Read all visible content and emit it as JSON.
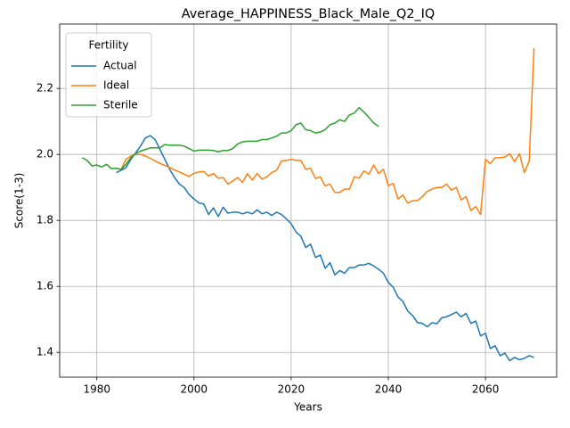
{
  "chart_data": {
    "type": "line",
    "title": "Average_HAPPINESS_Black_Male_Q2_IQ",
    "x_label": "Years",
    "y_label": "Score(1-3)",
    "legend_title": "Fertility",
    "legend_loc": "upper left",
    "grid": true,
    "x": [
      1977,
      1978,
      1979,
      1980,
      1981,
      1982,
      1983,
      1984,
      1985,
      1986,
      1987,
      1988,
      1989,
      1990,
      1991,
      1992,
      1993,
      1994,
      1995,
      1996,
      1997,
      1998,
      1999,
      2000,
      2001,
      2002,
      2003,
      2004,
      2005,
      2006,
      2007,
      2008,
      2009,
      2010,
      2011,
      2012,
      2013,
      2014,
      2015,
      2016,
      2017,
      2018,
      2019,
      2020,
      2021,
      2022,
      2023,
      2024,
      2025,
      2026,
      2027,
      2028,
      2029,
      2030,
      2031,
      2032,
      2033,
      2034,
      2035,
      2036,
      2037,
      2038,
      2039,
      2040,
      2041,
      2042,
      2043,
      2044,
      2045,
      2046,
      2047,
      2048,
      2049,
      2050,
      2051,
      2052,
      2053,
      2054,
      2055,
      2056,
      2057,
      2058,
      2059,
      2060,
      2061,
      2062,
      2063,
      2064,
      2065,
      2066,
      2067,
      2068,
      2069,
      2070
    ],
    "xlim": [
      1972.35,
      2074.65
    ],
    "xticks": [
      1980,
      2000,
      2020,
      2040,
      2060
    ],
    "ylim": [
      1.325,
      2.395
    ],
    "yticks": [
      1.4,
      1.6,
      1.8,
      {
        "value": 2.0,
        "label": "2.0"
      },
      2.2
    ],
    "series": [
      {
        "name": "Actual",
        "color": "#1f77b4",
        "values": [
          null,
          null,
          null,
          null,
          null,
          null,
          null,
          1.945,
          1.952,
          1.96,
          1.985,
          2.005,
          2.025,
          2.05,
          2.057,
          2.045,
          2.015,
          1.985,
          1.955,
          1.93,
          1.91,
          1.9,
          1.878,
          1.865,
          1.853,
          1.85,
          1.818,
          1.838,
          1.812,
          1.84,
          1.822,
          1.825,
          1.825,
          1.82,
          1.825,
          1.82,
          1.832,
          1.82,
          1.825,
          1.815,
          1.825,
          1.818,
          1.805,
          1.79,
          1.765,
          1.752,
          1.718,
          1.728,
          1.688,
          1.695,
          1.655,
          1.672,
          1.635,
          1.648,
          1.64,
          1.657,
          1.657,
          1.665,
          1.665,
          1.67,
          1.662,
          1.652,
          1.64,
          1.612,
          1.598,
          1.568,
          1.555,
          1.525,
          1.512,
          1.49,
          1.488,
          1.478,
          1.49,
          1.487,
          1.505,
          1.508,
          1.515,
          1.522,
          1.508,
          1.518,
          1.488,
          1.495,
          1.45,
          1.458,
          1.412,
          1.42,
          1.39,
          1.398,
          1.375,
          1.385,
          1.378,
          1.382,
          1.39,
          1.385
        ]
      },
      {
        "name": "Ideal",
        "color": "#ff7f0e",
        "values": [
          null,
          null,
          null,
          null,
          null,
          null,
          null,
          null,
          1.955,
          1.985,
          1.995,
          2.0,
          2.0,
          1.995,
          1.988,
          1.98,
          1.973,
          1.967,
          1.96,
          1.953,
          1.947,
          1.94,
          1.933,
          1.943,
          1.947,
          1.948,
          1.935,
          1.942,
          1.928,
          1.93,
          1.91,
          1.92,
          1.93,
          1.915,
          1.942,
          1.922,
          1.942,
          1.925,
          1.932,
          1.945,
          1.952,
          1.98,
          1.982,
          1.985,
          1.982,
          1.982,
          1.955,
          1.958,
          1.927,
          1.932,
          1.905,
          1.91,
          1.885,
          1.885,
          1.895,
          1.895,
          1.932,
          1.928,
          1.95,
          1.94,
          1.968,
          1.942,
          1.955,
          1.905,
          1.912,
          1.865,
          1.877,
          1.852,
          1.86,
          1.86,
          1.872,
          1.888,
          1.895,
          1.9,
          1.9,
          1.91,
          1.892,
          1.9,
          1.862,
          1.872,
          1.83,
          1.842,
          1.818,
          1.985,
          1.972,
          1.99,
          1.99,
          1.992,
          2.002,
          1.978,
          2.002,
          1.945,
          1.98,
          2.322
        ]
      },
      {
        "name": "Sterile",
        "color": "#2ca02c",
        "values": [
          1.99,
          1.982,
          1.965,
          1.968,
          1.962,
          1.97,
          1.957,
          1.958,
          1.955,
          1.97,
          1.99,
          2.003,
          2.01,
          2.015,
          2.02,
          2.02,
          2.02,
          2.03,
          2.028,
          2.028,
          2.028,
          2.025,
          2.018,
          2.01,
          2.013,
          2.013,
          2.013,
          2.012,
          2.008,
          2.012,
          2.012,
          2.018,
          2.032,
          2.038,
          2.04,
          2.04,
          2.04,
          2.045,
          2.045,
          2.05,
          2.055,
          2.065,
          2.065,
          2.072,
          2.09,
          2.095,
          2.075,
          2.072,
          2.065,
          2.068,
          2.075,
          2.09,
          2.095,
          2.105,
          2.1,
          2.12,
          2.125,
          2.142,
          2.128,
          2.112,
          2.095,
          2.085,
          null,
          null,
          null,
          null,
          null,
          null,
          null,
          null,
          null,
          null,
          null,
          null,
          null,
          null,
          null,
          null,
          null,
          null,
          null,
          null,
          null,
          null,
          null,
          null,
          null,
          null,
          null,
          null,
          null,
          null,
          null,
          null
        ]
      }
    ]
  }
}
